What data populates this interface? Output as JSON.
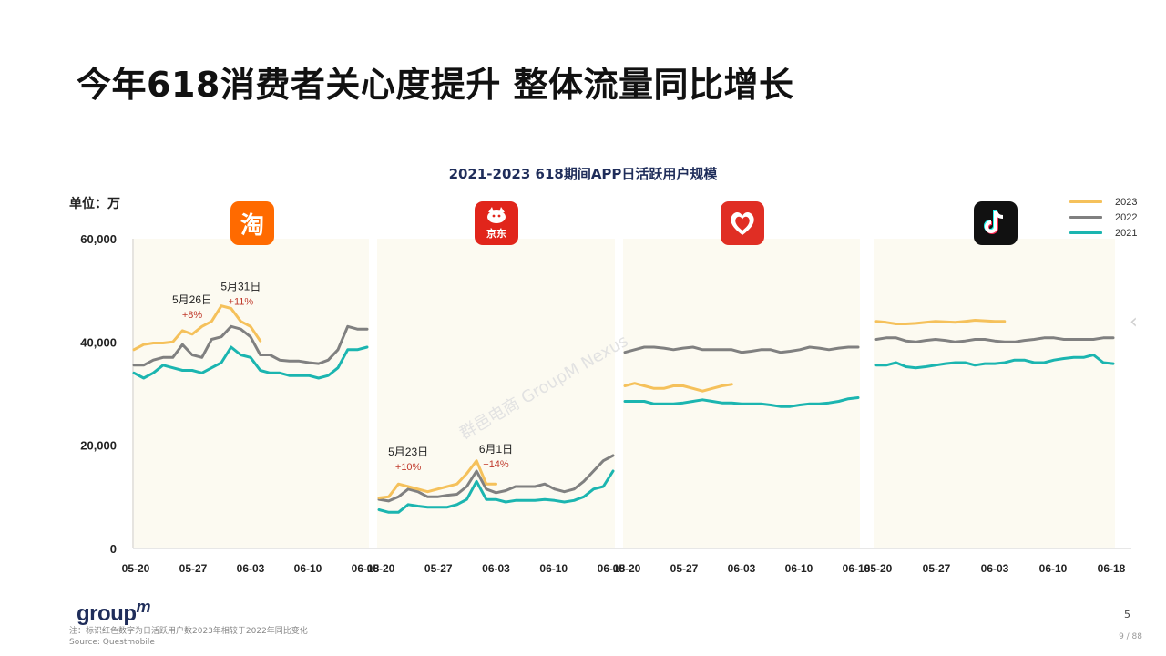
{
  "title": "今年618消费者关心度提升 整体流量同比增长",
  "unit_label": "单位：万",
  "logo": {
    "text": "group",
    "suffix": "m"
  },
  "footnote": "注：标识红色数字为日活跃用户数2023年相较于2022年同比变化",
  "source": "Source: Questmobile",
  "page_number": "5",
  "page_count": "9 / 88",
  "watermark": "群邑电商 GroupM Nexus",
  "icons": [
    {
      "name": "taobao-icon",
      "text": "淘",
      "color": "#ff6a00"
    },
    {
      "name": "jd-icon",
      "text": "京东",
      "color": "#e1251b"
    },
    {
      "name": "pinduoduo-icon",
      "text": "",
      "color": "#e02e24"
    },
    {
      "name": "douyin-icon",
      "text": "",
      "color": "#111111"
    }
  ],
  "chart_data": {
    "type": "line",
    "title": "2021-2023 618期间APP日活跃用户规模",
    "ylim": [
      0,
      60000
    ],
    "y_ticks": [
      "0",
      "20,000",
      "40,000",
      "60,000"
    ],
    "x_ticks": [
      "05-20",
      "05-27",
      "06-03",
      "06-10",
      "06-18"
    ],
    "legend": {
      "position": "top-right",
      "entries": [
        {
          "name": "2023",
          "color": "#f5c15b"
        },
        {
          "name": "2022",
          "color": "#808080"
        },
        {
          "name": "2021",
          "color": "#1bb5b0"
        }
      ]
    },
    "colors": {
      "2023": "#f5c15b",
      "2022": "#808080",
      "2021": "#1bb5b0"
    },
    "panels": [
      {
        "app": "taobao",
        "series": [
          {
            "name": "2023",
            "values": [
              38500,
              39500,
              39800,
              39800,
              40000,
              42200,
              41500,
              43000,
              44000,
              47000,
              46500,
              44000,
              43000,
              40200
            ]
          },
          {
            "name": "2022",
            "values": [
              35500,
              35500,
              36500,
              37000,
              37000,
              39500,
              37500,
              37000,
              40500,
              41000,
              43000,
              42500,
              41000,
              37500,
              37500,
              36500,
              36300,
              36300,
              36000,
              35800,
              36500,
              38500,
              43000,
              42500,
              42500
            ]
          },
          {
            "name": "2021",
            "values": [
              34000,
              33000,
              34000,
              35500,
              35000,
              34500,
              34500,
              34000,
              35000,
              36000,
              39000,
              37500,
              37000,
              34500,
              34000,
              34000,
              33500,
              33500,
              33500,
              33000,
              33500,
              35000,
              38500,
              38500,
              39000
            ]
          }
        ],
        "annotations": [
          {
            "date": "5月26日",
            "pct": "+8%",
            "index": 6
          },
          {
            "date": "5月31日",
            "pct": "+11%",
            "index": 11
          }
        ]
      },
      {
        "app": "jd",
        "series": [
          {
            "name": "2023",
            "values": [
              9800,
              10000,
              12500,
              12000,
              11500,
              11000,
              11500,
              12000,
              12500,
              14500,
              17000,
              12500,
              12500
            ]
          },
          {
            "name": "2022",
            "values": [
              9500,
              9200,
              10000,
              11500,
              11000,
              10000,
              10000,
              10300,
              10500,
              12000,
              15000,
              11500,
              10800,
              11200,
              12000,
              12000,
              12000,
              12500,
              11500,
              11000,
              11500,
              13000,
              15000,
              17000,
              18000
            ]
          },
          {
            "name": "2021",
            "values": [
              7500,
              7000,
              7000,
              8500,
              8200,
              8000,
              8000,
              8000,
              8500,
              9500,
              13000,
              9500,
              9500,
              9000,
              9300,
              9300,
              9300,
              9500,
              9300,
              9000,
              9300,
              10000,
              11500,
              12000,
              15000
            ]
          }
        ],
        "annotations": [
          {
            "date": "5月23日",
            "pct": "+10%",
            "index": 3
          },
          {
            "date": "6月1日",
            "pct": "+14%",
            "index": 12
          }
        ]
      },
      {
        "app": "pinduoduo",
        "series": [
          {
            "name": "2023",
            "values": [
              31500,
              32000,
              31500,
              31000,
              31000,
              31500,
              31500,
              31000,
              30500,
              31000,
              31500,
              31800
            ]
          },
          {
            "name": "2022",
            "values": [
              38000,
              38500,
              39000,
              39000,
              38800,
              38500,
              38800,
              39000,
              38500,
              38500,
              38500,
              38500,
              38000,
              38200,
              38500,
              38500,
              38000,
              38200,
              38500,
              39000,
              38800,
              38500,
              38800,
              39000,
              39000
            ]
          },
          {
            "name": "2021",
            "values": [
              28500,
              28500,
              28500,
              28000,
              28000,
              28000,
              28200,
              28500,
              28800,
              28500,
              28200,
              28200,
              28000,
              28000,
              28000,
              27800,
              27500,
              27500,
              27800,
              28000,
              28000,
              28200,
              28500,
              29000,
              29200
            ]
          }
        ],
        "annotations": []
      },
      {
        "app": "douyin",
        "series": [
          {
            "name": "2023",
            "values": [
              44000,
              43800,
              43500,
              43500,
              43600,
              43800,
              44000,
              43900,
              43800,
              44000,
              44200,
              44100,
              44000,
              44000
            ]
          },
          {
            "name": "2022",
            "values": [
              40500,
              40800,
              40800,
              40200,
              40000,
              40300,
              40500,
              40300,
              40000,
              40200,
              40500,
              40500,
              40200,
              40000,
              40000,
              40300,
              40500,
              40800,
              40800,
              40500,
              40500,
              40500,
              40500,
              40800,
              40800
            ]
          },
          {
            "name": "2021",
            "values": [
              35500,
              35500,
              36000,
              35200,
              35000,
              35200,
              35500,
              35800,
              36000,
              36000,
              35500,
              35800,
              35800,
              36000,
              36500,
              36500,
              36000,
              36000,
              36500,
              36800,
              37000,
              37000,
              37500,
              36000,
              35800
            ]
          }
        ],
        "annotations": []
      }
    ]
  }
}
